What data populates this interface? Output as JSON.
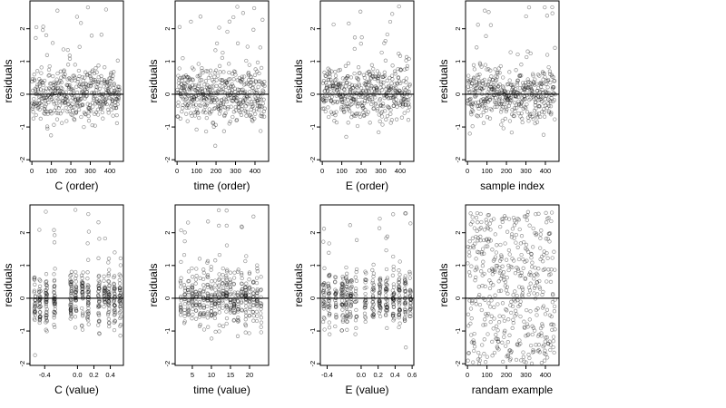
{
  "figure": {
    "ylabel": "residuals",
    "yticks": [
      -2,
      -1,
      0,
      1,
      2
    ],
    "ylim": [
      -2.05,
      2.85
    ]
  },
  "chart_data": [
    {
      "type": "scatter",
      "xlabel": "C (order)",
      "xlim": [
        -10,
        470
      ],
      "xticks": [
        0,
        100,
        200,
        300,
        400
      ],
      "ref_y": 0,
      "pattern": "order_C",
      "n": 450
    },
    {
      "type": "scatter",
      "xlabel": "time (order)",
      "xlim": [
        -10,
        470
      ],
      "xticks": [
        0,
        100,
        200,
        300,
        400
      ],
      "ref_y": 0,
      "pattern": "order_T",
      "n": 450
    },
    {
      "type": "scatter",
      "xlabel": "E (order)",
      "xlim": [
        -10,
        470
      ],
      "xticks": [
        0,
        100,
        200,
        300,
        400
      ],
      "ref_y": 0,
      "pattern": "order_E",
      "n": 450
    },
    {
      "type": "scatter",
      "xlabel": "sample index",
      "xlim": [
        -10,
        470
      ],
      "xticks": [
        0,
        100,
        200,
        300,
        400
      ],
      "ref_y": 0,
      "pattern": "index",
      "n": 450
    },
    {
      "type": "scatter",
      "xlabel": "C (value)",
      "xlim": [
        -0.58,
        0.56
      ],
      "xticks": [
        -0.4,
        0.0,
        0.2,
        0.4
      ],
      "tick_labels": [
        "-0.4",
        "0.0",
        "0.2",
        "0.4"
      ],
      "ref_y": 0,
      "pattern": "value_C",
      "n": 450
    },
    {
      "type": "scatter",
      "xlabel": "time (value)",
      "xlim": [
        0.5,
        25.0
      ],
      "xticks": [
        5,
        10,
        15,
        20
      ],
      "tick_labels": [
        "5",
        "10",
        "15",
        "20"
      ],
      "ref_y": 0,
      "pattern": "value_T",
      "n": 450
    },
    {
      "type": "scatter",
      "xlabel": "E (value)",
      "xlim": [
        -0.48,
        0.62
      ],
      "xticks": [
        -0.4,
        0.0,
        0.2,
        0.4,
        0.6
      ],
      "tick_labels": [
        "-0.4",
        "0.0",
        "0.2",
        "0.4",
        "0.6"
      ],
      "ref_y": 0,
      "pattern": "value_E",
      "n": 450
    },
    {
      "type": "scatter",
      "xlabel": "randam example",
      "xlim": [
        -10,
        470
      ],
      "xticks": [
        0,
        100,
        200,
        300,
        400
      ],
      "ref_y": 0,
      "pattern": "uniform",
      "n": 450
    }
  ]
}
